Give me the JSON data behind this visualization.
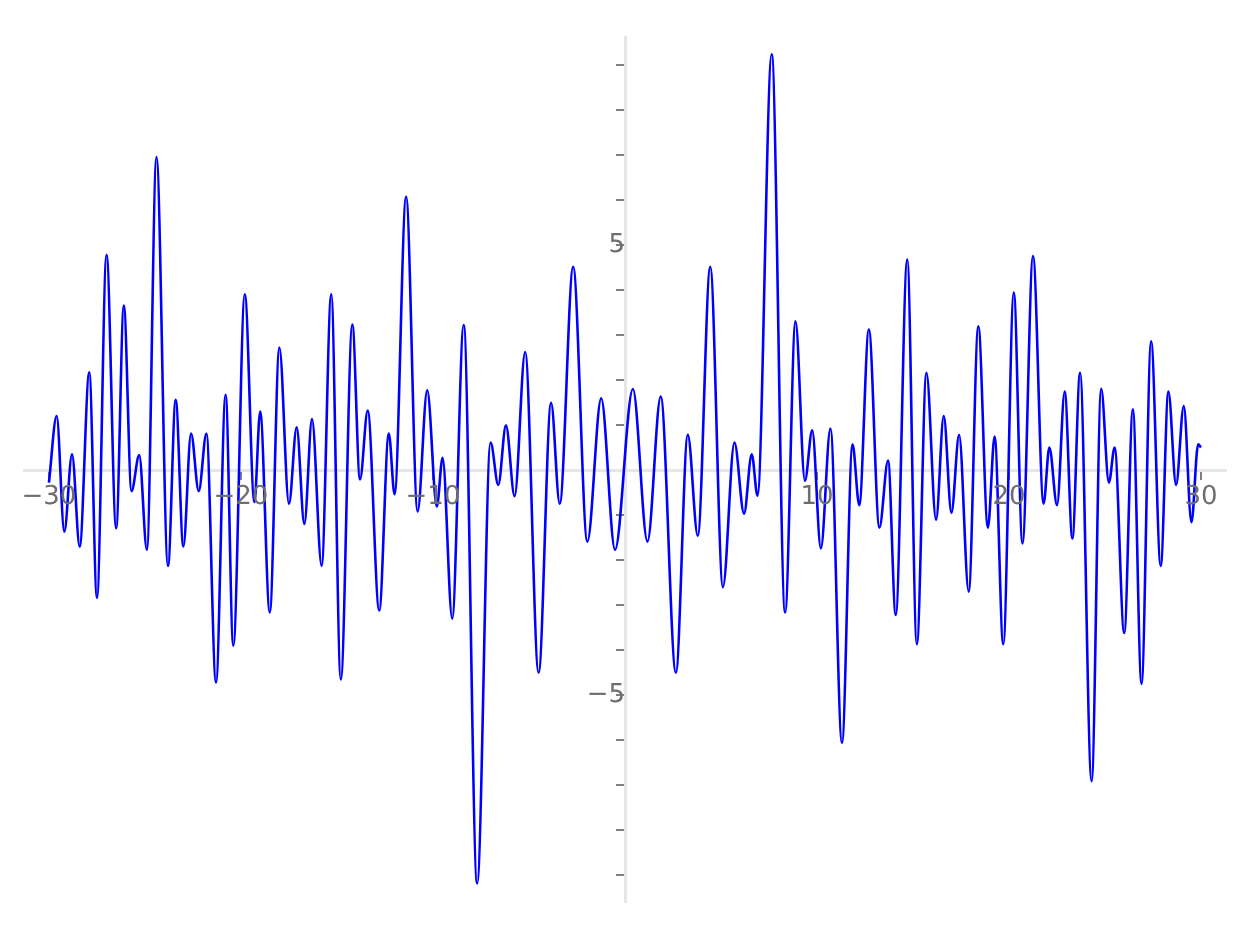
{
  "chart_data": {
    "type": "line",
    "x": [
      -30,
      -29.6,
      -29.2,
      -28.8,
      -28.4,
      -27.9,
      -27.5,
      -27.0,
      -26.5,
      -26.1,
      -25.7,
      -25.3,
      -24.9,
      -24.4,
      -23.8,
      -23.4,
      -23.0,
      -22.6,
      -22.2,
      -21.8,
      -21.3,
      -20.8,
      -20.4,
      -19.8,
      -19.3,
      -19.0,
      -18.5,
      -18.0,
      -17.5,
      -17.1,
      -16.7,
      -16.3,
      -15.8,
      -15.3,
      -14.8,
      -14.2,
      -13.8,
      -13.4,
      -12.8,
      -12.3,
      -12.0,
      -11.4,
      -10.8,
      -10.3,
      -9.8,
      -9.5,
      -9.0,
      -8.4,
      -7.7,
      -7.0,
      -6.6,
      -6.2,
      -5.75,
      -5.2,
      -4.5,
      -3.85,
      -3.4,
      -2.7,
      -1.96,
      -1.24,
      -0.52,
      0.41,
      1.17,
      1.86,
      2.65,
      3.27,
      3.79,
      4.44,
      5.1,
      5.7,
      6.2,
      6.6,
      6.9,
      7.64,
      8.34,
      8.88,
      9.37,
      9.75,
      10.2,
      10.7,
      11.3,
      11.85,
      12.2,
      12.7,
      13.25,
      13.7,
      14.1,
      14.7,
      15.2,
      15.7,
      16.2,
      16.6,
      17.0,
      17.4,
      17.9,
      18.4,
      18.9,
      19.25,
      19.7,
      20.25,
      20.7,
      21.25,
      21.8,
      22.1,
      22.5,
      22.9,
      23.3,
      23.7,
      24.3,
      24.8,
      25.2,
      25.5,
      26.0,
      26.45,
      26.9,
      27.4,
      27.9,
      28.3,
      28.7,
      29.1,
      29.5,
      29.85,
      30.0
    ],
    "series": [
      {
        "color": "#0000ff",
        "values": [
          -0.28,
          1.2,
          -1.37,
          0.35,
          -1.7,
          2.17,
          -2.84,
          4.78,
          -1.3,
          3.65,
          -0.47,
          0.33,
          -1.77,
          6.95,
          -2.13,
          1.56,
          -1.7,
          0.81,
          -0.47,
          0.81,
          -4.72,
          1.67,
          -3.9,
          3.9,
          -0.71,
          1.3,
          -3.16,
          2.72,
          -0.75,
          0.95,
          -1.2,
          1.13,
          -2.13,
          3.9,
          -4.65,
          3.23,
          -0.21,
          1.32,
          -3.12,
          0.81,
          -0.54,
          6.07,
          -0.92,
          1.77,
          -0.81,
          0.27,
          -3.3,
          3.22,
          -9.18,
          0.61,
          -0.33,
          0.99,
          -0.58,
          2.62,
          -4.5,
          1.49,
          -0.75,
          4.51,
          -1.59,
          1.59,
          -1.77,
          1.8,
          -1.59,
          1.63,
          -4.5,
          0.78,
          -1.46,
          4.51,
          -2.6,
          0.61,
          -0.97,
          0.35,
          -0.57,
          9.23,
          -3.16,
          3.3,
          -0.24,
          0.88,
          -1.74,
          0.92,
          -6.06,
          0.57,
          -0.78,
          3.12,
          -1.28,
          0.21,
          -3.22,
          4.67,
          -3.87,
          2.16,
          -1.11,
          1.2,
          -0.95,
          0.78,
          -2.7,
          3.19,
          -1.28,
          0.74,
          -3.87,
          3.94,
          -1.63,
          4.75,
          -0.75,
          0.5,
          -0.78,
          1.74,
          -1.52,
          2.16,
          -6.91,
          1.8,
          -0.28,
          0.5,
          -3.62,
          1.35,
          -4.75,
          2.86,
          -2.13,
          1.74,
          -0.33,
          1.42,
          -1.16,
          0.57,
          0.5
        ]
      }
    ],
    "xlim": [
      -31.3,
      31.3
    ],
    "ylim": [
      -9.6,
      9.6
    ],
    "xticks": [
      -30,
      -20,
      -10,
      10,
      20,
      30
    ],
    "yticks": [
      {
        "value": -9,
        "label": null
      },
      {
        "value": -8,
        "label": null
      },
      {
        "value": -7,
        "label": null
      },
      {
        "value": -6,
        "label": null
      },
      -5,
      {
        "value": -4,
        "label": null
      },
      {
        "value": -3,
        "label": null
      },
      {
        "value": -2,
        "label": null
      },
      {
        "value": -1,
        "label": null
      },
      {
        "value": 0,
        "label": null
      },
      {
        "value": 1,
        "label": null
      },
      {
        "value": 2,
        "label": null
      },
      {
        "value": 3,
        "label": null
      },
      {
        "value": 4,
        "label": null
      },
      5,
      {
        "value": 6,
        "label": null
      },
      {
        "value": 7,
        "label": null
      },
      {
        "value": 8,
        "label": null
      },
      {
        "value": 9,
        "label": null
      }
    ],
    "marker": "none",
    "line_style": "solid"
  }
}
